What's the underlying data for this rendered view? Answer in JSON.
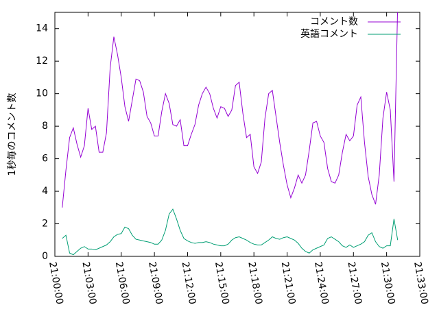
{
  "chart_data": {
    "type": "line",
    "ylabel": "1秒毎のコメント数",
    "x": [
      40,
      60,
      80,
      100,
      120,
      140,
      160,
      180,
      200,
      220,
      240,
      260,
      280,
      300,
      320,
      340,
      360,
      380,
      400,
      420,
      440,
      460,
      480,
      500,
      520,
      540,
      560,
      580,
      600,
      620,
      640,
      660,
      680,
      700,
      720,
      740,
      760,
      780,
      800,
      820,
      840,
      860,
      880,
      900,
      920,
      940,
      960,
      980,
      1000,
      1020,
      1040,
      1060,
      1080,
      1100,
      1120,
      1140,
      1160,
      1180,
      1200,
      1220,
      1240,
      1260,
      1280,
      1300,
      1320,
      1340,
      1360,
      1380,
      1400,
      1420,
      1440,
      1460,
      1480,
      1500,
      1520,
      1540,
      1560,
      1580,
      1600,
      1620,
      1640,
      1660,
      1680,
      1700,
      1720,
      1740,
      1760,
      1780,
      1800,
      1820,
      1840,
      1860
    ],
    "series": [
      {
        "name": "コメント数",
        "color": "#9400d3",
        "values": [
          3.0,
          5.3,
          7.3,
          7.9,
          6.9,
          6.1,
          6.8,
          9.1,
          7.8,
          8.0,
          6.4,
          6.4,
          7.6,
          11.6,
          13.5,
          12.4,
          11.0,
          9.2,
          8.3,
          9.6,
          10.9,
          10.8,
          10.1,
          8.6,
          8.2,
          7.4,
          7.4,
          8.9,
          10.0,
          9.4,
          8.1,
          8.0,
          8.4,
          6.8,
          6.8,
          7.5,
          8.1,
          9.3,
          10.0,
          10.4,
          10.0,
          9.1,
          8.5,
          9.2,
          9.1,
          8.6,
          9.0,
          10.5,
          10.7,
          8.8,
          7.3,
          7.5,
          5.5,
          5.1,
          5.8,
          8.5,
          10.0,
          10.2,
          8.6,
          7.0,
          5.6,
          4.4,
          3.6,
          4.2,
          5.0,
          4.5,
          5.0,
          6.5,
          8.2,
          8.3,
          7.4,
          7.0,
          5.4,
          4.6,
          4.5,
          5.0,
          6.4,
          7.5,
          7.1,
          7.4,
          9.3,
          9.8,
          7.0,
          4.9,
          3.8,
          3.2,
          5.0,
          8.5,
          10.1,
          9.0,
          4.6,
          15.5
        ]
      },
      {
        "name": "英語コメント",
        "color": "#009e73",
        "values": [
          1.1,
          1.3,
          0.2,
          0.1,
          0.3,
          0.5,
          0.6,
          0.45,
          0.45,
          0.4,
          0.5,
          0.6,
          0.7,
          0.9,
          1.2,
          1.35,
          1.4,
          1.8,
          1.7,
          1.3,
          1.05,
          1.0,
          0.95,
          0.9,
          0.85,
          0.75,
          0.75,
          1.0,
          1.6,
          2.6,
          2.9,
          2.3,
          1.6,
          1.1,
          0.95,
          0.85,
          0.8,
          0.85,
          0.85,
          0.9,
          0.85,
          0.75,
          0.7,
          0.65,
          0.65,
          0.75,
          1.0,
          1.15,
          1.2,
          1.1,
          1.0,
          0.85,
          0.75,
          0.7,
          0.7,
          0.85,
          1.0,
          1.2,
          1.1,
          1.05,
          1.15,
          1.2,
          1.1,
          1.0,
          0.8,
          0.5,
          0.3,
          0.2,
          0.4,
          0.5,
          0.6,
          0.7,
          1.1,
          1.2,
          1.05,
          0.9,
          0.65,
          0.55,
          0.7,
          0.55,
          0.65,
          0.75,
          0.9,
          1.3,
          1.45,
          0.9,
          0.6,
          0.5,
          0.65,
          0.65,
          2.3,
          1.0
        ]
      }
    ],
    "xlim": [
      0,
      1980
    ],
    "xticks": [
      {
        "value": 0,
        "label": "21:00:00"
      },
      {
        "value": 180,
        "label": "21:03:00"
      },
      {
        "value": 360,
        "label": "21:06:00"
      },
      {
        "value": 540,
        "label": "21:09:00"
      },
      {
        "value": 720,
        "label": "21:12:00"
      },
      {
        "value": 900,
        "label": "21:15:00"
      },
      {
        "value": 1080,
        "label": "21:18:00"
      },
      {
        "value": 1260,
        "label": "21:21:00"
      },
      {
        "value": 1440,
        "label": "21:24:00"
      },
      {
        "value": 1620,
        "label": "21:27:00"
      },
      {
        "value": 1800,
        "label": "21:30:00"
      },
      {
        "value": 1980,
        "label": "21:33:00"
      }
    ],
    "ylim": [
      0,
      15
    ],
    "yticks": [
      0,
      2,
      4,
      6,
      8,
      10,
      12,
      14
    ],
    "legend": "top-right"
  }
}
